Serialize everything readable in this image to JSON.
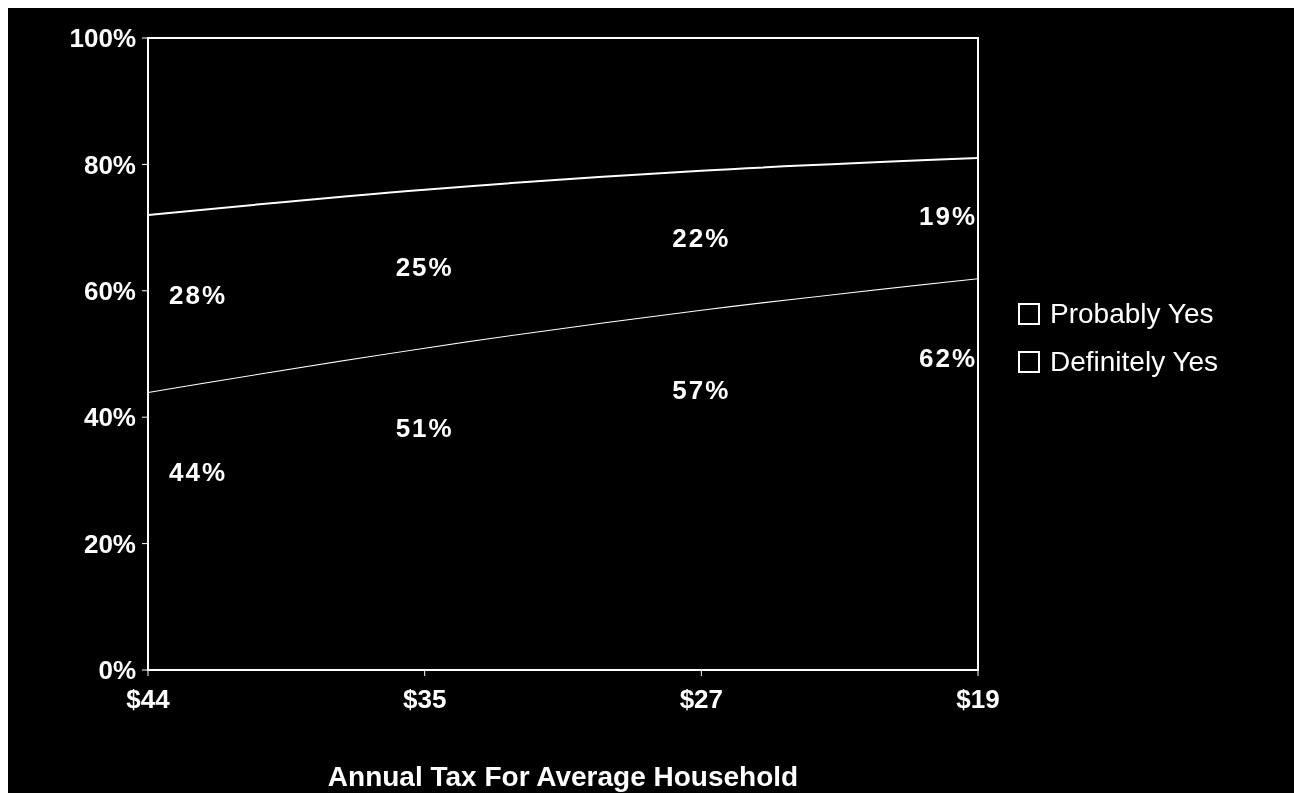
{
  "chart_data": {
    "type": "area",
    "stacked": true,
    "xlabel": "Annual Tax For Average Household",
    "categories": [
      "$44",
      "$35",
      "$27",
      "$19"
    ],
    "series": [
      {
        "name": "Definitely Yes",
        "color": "#ffffff",
        "values": [
          44,
          51,
          57,
          62
        ],
        "value_labels": [
          "44%",
          "51%",
          "57%",
          "62%"
        ]
      },
      {
        "name": "Probably Yes",
        "color": "#ffffff",
        "values": [
          28,
          25,
          22,
          19
        ],
        "value_labels": [
          "28%",
          "25%",
          "22%",
          "19%"
        ]
      }
    ],
    "ylim": [
      0,
      100
    ],
    "yticks": [
      {
        "value": 0,
        "label": "0%"
      },
      {
        "value": 20,
        "label": "20%"
      },
      {
        "value": 40,
        "label": "40%"
      },
      {
        "value": 60,
        "label": "60%"
      },
      {
        "value": 80,
        "label": "80%"
      },
      {
        "value": 100,
        "label": "100%"
      }
    ],
    "legend": "right",
    "grid": false
  }
}
